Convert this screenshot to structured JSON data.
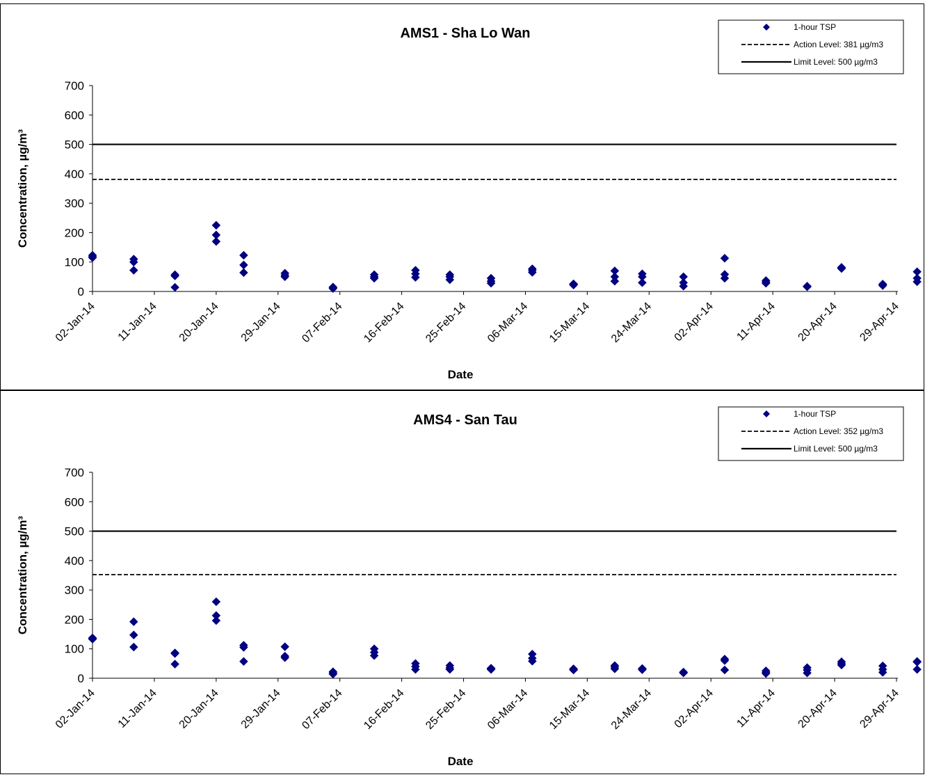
{
  "chart_data": [
    {
      "type": "scatter",
      "title": "AMS1 - Sha Lo Wan",
      "xlabel": "Date",
      "ylabel": "Concentration, µg/m³",
      "ylim": [
        0,
        700
      ],
      "yticks": [
        0,
        100,
        200,
        300,
        400,
        500,
        600,
        700
      ],
      "xlim": [
        "2014-01-02",
        "2014-04-29"
      ],
      "xtick_labels": [
        "02-Jan-14",
        "11-Jan-14",
        "20-Jan-14",
        "29-Jan-14",
        "07-Feb-14",
        "16-Feb-14",
        "25-Feb-14",
        "06-Mar-14",
        "15-Mar-14",
        "24-Mar-14",
        "02-Apr-14",
        "11-Apr-14",
        "20-Apr-14",
        "29-Apr-14"
      ],
      "grid": false,
      "legend_position": "top-right",
      "legend": [
        "1-hour TSP",
        "Action Level: 381 µg/m3",
        "Limit Level: 500 µg/m3"
      ],
      "action_level": 381,
      "limit_level": 500,
      "colors": {
        "marker": "#000080",
        "lines": "#000000"
      },
      "series": [
        {
          "name": "1-hour TSP",
          "points": [
            [
              "2014-01-02",
              123
            ],
            [
              "2014-01-02",
              115
            ],
            [
              "2014-01-02",
              118
            ],
            [
              "2014-01-08",
              110
            ],
            [
              "2014-01-08",
              100
            ],
            [
              "2014-01-08",
              72
            ],
            [
              "2014-01-14",
              57
            ],
            [
              "2014-01-14",
              53
            ],
            [
              "2014-01-14",
              14
            ],
            [
              "2014-01-20",
              225
            ],
            [
              "2014-01-20",
              192
            ],
            [
              "2014-01-20",
              170
            ],
            [
              "2014-01-24",
              123
            ],
            [
              "2014-01-24",
              90
            ],
            [
              "2014-01-24",
              64
            ],
            [
              "2014-01-30",
              62
            ],
            [
              "2014-01-30",
              55
            ],
            [
              "2014-01-30",
              50
            ],
            [
              "2014-02-06",
              15
            ],
            [
              "2014-02-06",
              12
            ],
            [
              "2014-02-06",
              10
            ],
            [
              "2014-02-12",
              57
            ],
            [
              "2014-02-12",
              50
            ],
            [
              "2014-02-12",
              45
            ],
            [
              "2014-02-18",
              72
            ],
            [
              "2014-02-18",
              60
            ],
            [
              "2014-02-18",
              48
            ],
            [
              "2014-02-23",
              57
            ],
            [
              "2014-02-23",
              50
            ],
            [
              "2014-02-23",
              40
            ],
            [
              "2014-03-01",
              45
            ],
            [
              "2014-03-01",
              35
            ],
            [
              "2014-03-01",
              28
            ],
            [
              "2014-03-07",
              77
            ],
            [
              "2014-03-07",
              72
            ],
            [
              "2014-03-07",
              65
            ],
            [
              "2014-03-13",
              26
            ],
            [
              "2014-03-13",
              24
            ],
            [
              "2014-03-13",
              22
            ],
            [
              "2014-03-19",
              70
            ],
            [
              "2014-03-19",
              50
            ],
            [
              "2014-03-19",
              35
            ],
            [
              "2014-03-23",
              60
            ],
            [
              "2014-03-23",
              50
            ],
            [
              "2014-03-23",
              30
            ],
            [
              "2014-03-29",
              50
            ],
            [
              "2014-03-29",
              30
            ],
            [
              "2014-03-29",
              18
            ],
            [
              "2014-04-04",
              113
            ],
            [
              "2014-04-04",
              58
            ],
            [
              "2014-04-04",
              45
            ],
            [
              "2014-04-10",
              37
            ],
            [
              "2014-04-10",
              32
            ],
            [
              "2014-04-10",
              28
            ],
            [
              "2014-04-16",
              18
            ],
            [
              "2014-04-16",
              16
            ],
            [
              "2014-04-16",
              17
            ],
            [
              "2014-04-21",
              82
            ],
            [
              "2014-04-21",
              78
            ],
            [
              "2014-04-21",
              80
            ],
            [
              "2014-04-27",
              25
            ],
            [
              "2014-04-27",
              22
            ],
            [
              "2014-04-27",
              20
            ],
            [
              "2014-05-02",
              67
            ],
            [
              "2014-05-02",
              45
            ],
            [
              "2014-05-02",
              33
            ]
          ]
        }
      ]
    },
    {
      "type": "scatter",
      "title": "AMS4 - San Tau",
      "xlabel": "Date",
      "ylabel": "Concentration, µg/m³",
      "ylim": [
        0,
        700
      ],
      "yticks": [
        0,
        100,
        200,
        300,
        400,
        500,
        600,
        700
      ],
      "xlim": [
        "2014-01-02",
        "2014-04-29"
      ],
      "xtick_labels": [
        "02-Jan-14",
        "11-Jan-14",
        "20-Jan-14",
        "29-Jan-14",
        "07-Feb-14",
        "16-Feb-14",
        "25-Feb-14",
        "06-Mar-14",
        "15-Mar-14",
        "24-Mar-14",
        "02-Apr-14",
        "11-Apr-14",
        "20-Apr-14",
        "29-Apr-14"
      ],
      "grid": false,
      "legend_position": "top-right",
      "legend": [
        "1-hour TSP",
        "Action Level: 352 µg/m3",
        "Limit Level: 500 µg/m3"
      ],
      "action_level": 352,
      "limit_level": 500,
      "colors": {
        "marker": "#000080",
        "lines": "#000000"
      },
      "series": [
        {
          "name": "1-hour TSP",
          "points": [
            [
              "2014-01-02",
              137
            ],
            [
              "2014-01-02",
              133
            ],
            [
              "2014-01-02",
              135
            ],
            [
              "2014-01-08",
              192
            ],
            [
              "2014-01-08",
              147
            ],
            [
              "2014-01-08",
              106
            ],
            [
              "2014-01-14",
              86
            ],
            [
              "2014-01-14",
              84
            ],
            [
              "2014-01-14",
              48
            ],
            [
              "2014-01-20",
              260
            ],
            [
              "2014-01-20",
              213
            ],
            [
              "2014-01-20",
              196
            ],
            [
              "2014-01-24",
              112
            ],
            [
              "2014-01-24",
              105
            ],
            [
              "2014-01-24",
              57
            ],
            [
              "2014-01-30",
              107
            ],
            [
              "2014-01-30",
              75
            ],
            [
              "2014-01-30",
              70
            ],
            [
              "2014-02-06",
              22
            ],
            [
              "2014-02-06",
              18
            ],
            [
              "2014-02-06",
              14
            ],
            [
              "2014-02-12",
              100
            ],
            [
              "2014-02-12",
              88
            ],
            [
              "2014-02-12",
              77
            ],
            [
              "2014-02-18",
              50
            ],
            [
              "2014-02-18",
              40
            ],
            [
              "2014-02-18",
              30
            ],
            [
              "2014-02-23",
              43
            ],
            [
              "2014-02-23",
              35
            ],
            [
              "2014-02-23",
              30
            ],
            [
              "2014-03-01",
              34
            ],
            [
              "2014-03-01",
              32
            ],
            [
              "2014-03-01",
              30
            ],
            [
              "2014-03-07",
              82
            ],
            [
              "2014-03-07",
              68
            ],
            [
              "2014-03-07",
              58
            ],
            [
              "2014-03-13",
              32
            ],
            [
              "2014-03-13",
              30
            ],
            [
              "2014-03-13",
              28
            ],
            [
              "2014-03-19",
              43
            ],
            [
              "2014-03-19",
              38
            ],
            [
              "2014-03-19",
              32
            ],
            [
              "2014-03-23",
              33
            ],
            [
              "2014-03-23",
              31
            ],
            [
              "2014-03-23",
              29
            ],
            [
              "2014-03-29",
              21
            ],
            [
              "2014-03-29",
              19
            ],
            [
              "2014-03-29",
              18
            ],
            [
              "2014-04-04",
              65
            ],
            [
              "2014-04-04",
              60
            ],
            [
              "2014-04-04",
              28
            ],
            [
              "2014-04-10",
              25
            ],
            [
              "2014-04-10",
              20
            ],
            [
              "2014-04-10",
              16
            ],
            [
              "2014-04-16",
              36
            ],
            [
              "2014-04-16",
              28
            ],
            [
              "2014-04-16",
              18
            ],
            [
              "2014-04-21",
              56
            ],
            [
              "2014-04-21",
              50
            ],
            [
              "2014-04-21",
              45
            ],
            [
              "2014-04-27",
              42
            ],
            [
              "2014-04-27",
              30
            ],
            [
              "2014-04-27",
              20
            ],
            [
              "2014-05-02",
              57
            ],
            [
              "2014-05-02",
              55
            ],
            [
              "2014-05-02",
              30
            ]
          ]
        }
      ]
    }
  ]
}
